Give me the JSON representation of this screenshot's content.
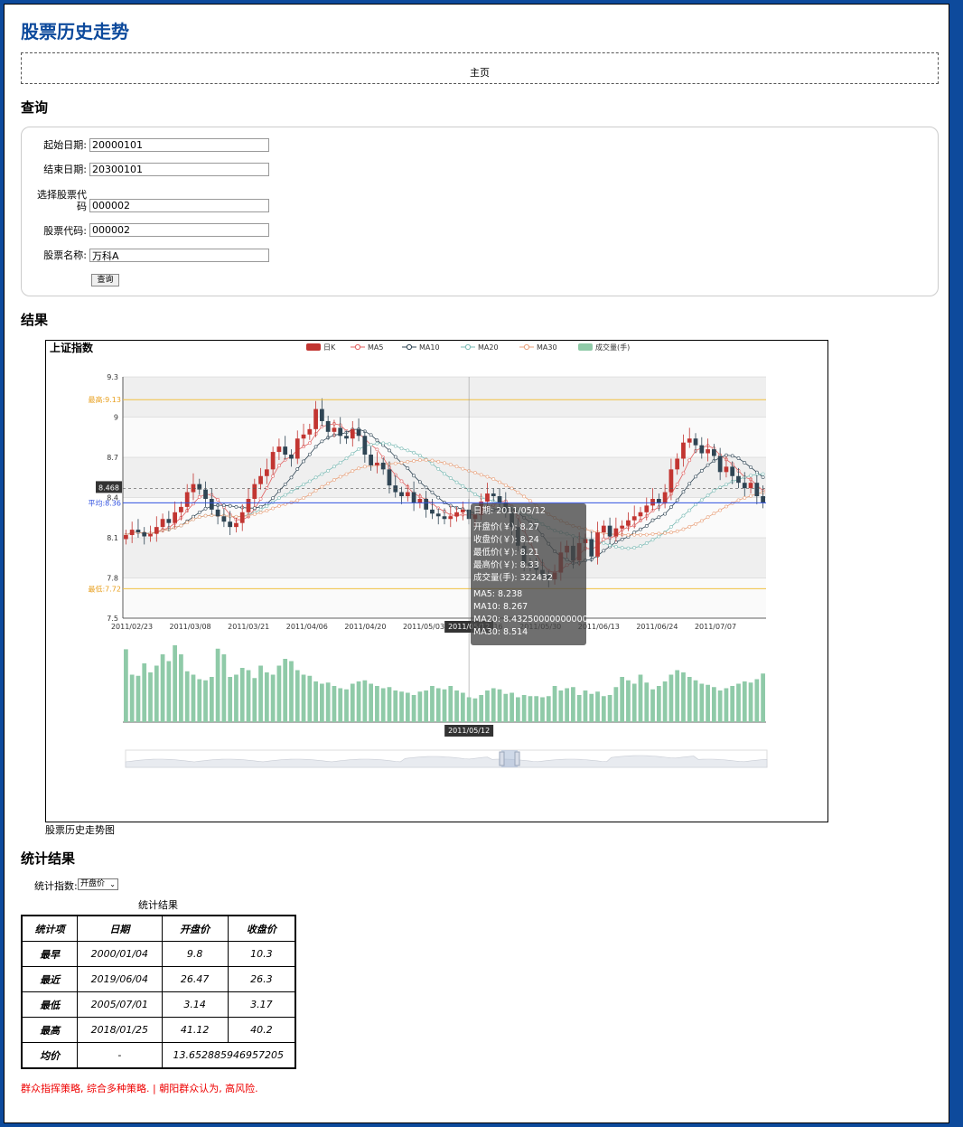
{
  "page_title": "股票历史走势",
  "nav": {
    "home": "主页"
  },
  "query_section": {
    "title": "查询",
    "fields": {
      "start_date": {
        "label": "起始日期:",
        "value": "20000101"
      },
      "end_date": {
        "label": "结束日期:",
        "value": "20300101"
      },
      "select_code": {
        "label_line1": "选择股票代",
        "label_line2": "码",
        "value": "000002"
      },
      "stock_code": {
        "label": "股票代码:",
        "value": "000002"
      },
      "stock_name": {
        "label": "股票名称:",
        "value": "万科A"
      }
    },
    "submit_label": "查询"
  },
  "result_section": {
    "title": "结果",
    "caption": "股票历史走势图"
  },
  "chart_data": {
    "type": "candlestick",
    "title": "上证指数",
    "legend": [
      "日K",
      "MA5",
      "MA10",
      "MA20",
      "MA30",
      "成交量(手)"
    ],
    "legend_position": "top-center",
    "ylim": [
      7.5,
      9.3
    ],
    "y_ticks": [
      "9.3",
      "9",
      "8.7",
      "8.4",
      "8.1",
      "7.8",
      "7.5"
    ],
    "x_ticks": [
      "2011/02/23",
      "2011/03/08",
      "2011/03/21",
      "2011/04/06",
      "2011/04/20",
      "2011/05/03",
      "2011/05/16",
      "2011/05/30",
      "2011/06/13",
      "2011/06/24",
      "2011/07/07"
    ],
    "mark_lines": {
      "max_label": "最高:9.13",
      "min_label": "最低:7.72",
      "avg_label": "平均:8.36",
      "max": 9.13,
      "min": 7.72,
      "avg": 8.36
    },
    "crosshair": {
      "y_label": "8.468",
      "x_label": "2011/05/12"
    },
    "colors": {
      "up": "#c23531",
      "down": "#2f4554",
      "ma5": "#e06060",
      "ma10": "#2f4554",
      "ma20": "#7bbbb5",
      "ma30": "#e8a07a",
      "volume": "#8fcaa8",
      "markline": "#f0c040",
      "avgline": "#3050e0"
    },
    "closes": [
      8.12,
      8.16,
      8.14,
      8.11,
      8.13,
      8.18,
      8.24,
      8.21,
      8.29,
      8.33,
      8.44,
      8.5,
      8.46,
      8.39,
      8.31,
      8.26,
      8.22,
      8.18,
      8.21,
      8.29,
      8.39,
      8.5,
      8.56,
      8.61,
      8.74,
      8.78,
      8.72,
      8.69,
      8.84,
      8.87,
      8.91,
      9.06,
      8.97,
      8.89,
      8.92,
      8.86,
      8.84,
      8.91,
      8.86,
      8.72,
      8.64,
      8.66,
      8.61,
      8.49,
      8.44,
      8.41,
      8.44,
      8.36,
      8.39,
      8.31,
      8.28,
      8.26,
      8.24,
      8.26,
      8.29,
      8.31,
      8.24,
      8.27,
      8.37,
      8.43,
      8.41,
      8.36,
      8.29,
      8.18,
      8.04,
      7.91,
      7.89,
      7.86,
      7.82,
      7.79,
      7.84,
      7.99,
      8.04,
      7.93,
      8.06,
      8.09,
      7.96,
      8.14,
      8.19,
      8.11,
      8.17,
      8.19,
      8.23,
      8.26,
      8.29,
      8.34,
      8.39,
      8.36,
      8.44,
      8.61,
      8.69,
      8.81,
      8.84,
      8.79,
      8.73,
      8.76,
      8.71,
      8.59,
      8.63,
      8.56,
      8.51,
      8.47,
      8.51,
      8.41,
      8.36
    ],
    "volume": [
      322432,
      210000,
      205000,
      260000,
      220000,
      250000,
      300000,
      270000,
      340000,
      300000,
      225000,
      210000,
      190000,
      185000,
      200000,
      325000,
      300000,
      200000,
      210000,
      240000,
      230000,
      195000,
      250000,
      220000,
      210000,
      250000,
      280000,
      270000,
      230000,
      210000,
      205000,
      180000,
      170000,
      175000,
      160000,
      150000,
      145000,
      170000,
      180000,
      185000,
      170000,
      160000,
      150000,
      155000,
      140000,
      135000,
      130000,
      120000,
      135000,
      140000,
      160000,
      150000,
      145000,
      160000,
      140000,
      130000,
      110000,
      105000,
      120000,
      140000,
      150000,
      145000,
      125000,
      130000,
      110000,
      120000,
      115000,
      115000,
      110000,
      115000,
      160000,
      140000,
      150000,
      155000,
      120000,
      140000,
      125000,
      135000,
      115000,
      120000,
      155000,
      200000,
      185000,
      170000,
      210000,
      175000,
      145000,
      160000,
      180000,
      210000,
      230000,
      220000,
      200000,
      185000,
      170000,
      165000,
      155000,
      140000,
      150000,
      160000,
      170000,
      180000,
      175000,
      190000,
      215000
    ]
  },
  "tooltip": {
    "date": "日期: 2011/05/12",
    "open": "开盘价(￥): 8.27",
    "close": "收盘价(￥): 8.24",
    "low": "最低价(￥): 8.21",
    "high": "最高价(￥): 8.33",
    "volume": "成交量(手): 322432",
    "ma5": "MA5: 8.238",
    "ma10": "MA10: 8.267",
    "ma20": "MA20: 8.432500000000001",
    "ma30": "MA30: 8.514"
  },
  "stats_section": {
    "title": "统计结果",
    "metric_label": "统计指数:",
    "metric_value": "开盘价",
    "caption": "统计结果",
    "headers": [
      "统计项",
      "日期",
      "开盘价",
      "收盘价"
    ],
    "rows": [
      [
        "最早",
        "2000/01/04",
        "9.8",
        "10.3"
      ],
      [
        "最近",
        "2019/06/04",
        "26.47",
        "26.3"
      ],
      [
        "最低",
        "2005/07/01",
        "3.14",
        "3.17"
      ],
      [
        "最高",
        "2018/01/25",
        "41.12",
        "40.2"
      ]
    ],
    "avg_row": {
      "label": "均价",
      "date": "-",
      "value": "13.652885946957205"
    }
  },
  "footer": "群众指挥策略, 综合多种策略. | 朝阳群众认为, 高风险."
}
